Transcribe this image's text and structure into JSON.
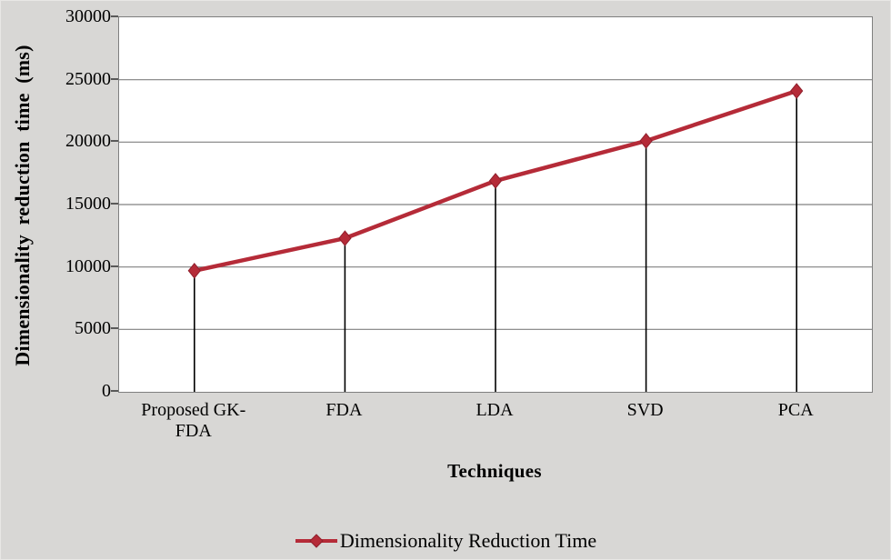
{
  "chart_data": {
    "type": "line",
    "categories": [
      "Proposed GK-FDA",
      "FDA",
      "LDA",
      "SVD",
      "PCA"
    ],
    "series": [
      {
        "name": "Dimensionality Reduction Time",
        "values": [
          9700,
          12300,
          16900,
          20100,
          24100
        ]
      }
    ],
    "xlabel": "Techniques",
    "ylabel": "Dimensionality reduction time (ms)",
    "ylim": [
      0,
      30000
    ],
    "yticks": [
      0,
      5000,
      10000,
      15000,
      20000,
      25000,
      30000
    ],
    "ytick_labels": [
      "0",
      "5000",
      "10000",
      "15000",
      "20000",
      "25000",
      "30000"
    ],
    "grid": true,
    "drop_lines": true,
    "marker": "diamond",
    "legend_position": "bottom",
    "legend_label": "Dimensionality Reduction Time"
  },
  "colors": {
    "line": "#b52b38",
    "marker_edge": "#8f1f2c",
    "figure_background": "#d8d7d5",
    "plot_background": "#ffffff",
    "gridline": "#808080",
    "plot_border": "#7f7f7f",
    "drop_line": "#000000",
    "tick_mark": "#595959",
    "text": "#000000"
  }
}
